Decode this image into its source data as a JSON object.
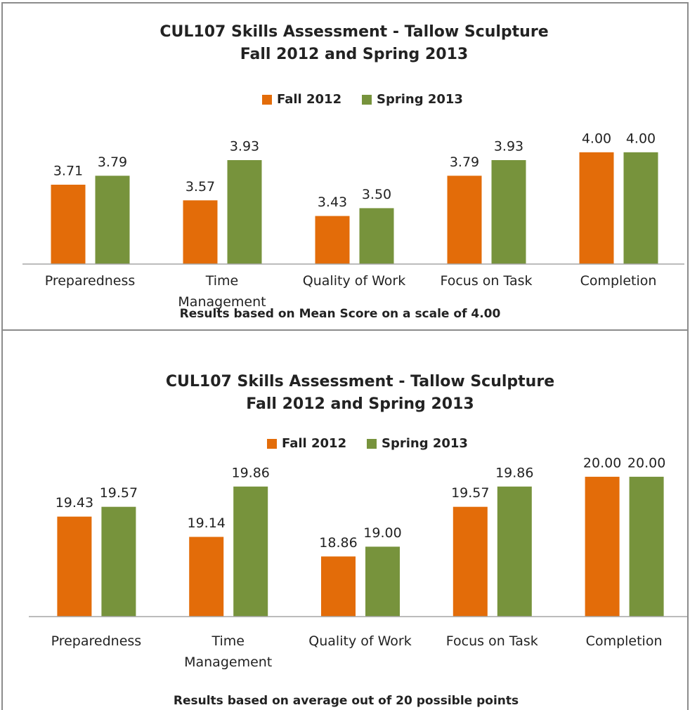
{
  "chart_data": [
    {
      "type": "bar",
      "title": "CUL107 Skills Assessment - Tallow Sculpture",
      "subtitle": "Fall 2012 and Spring 2013",
      "categories": [
        "Preparedness",
        "Time\nManagement",
        "Quality of Work",
        "Focus on Task",
        "Completion"
      ],
      "series": [
        {
          "name": "Fall 2012",
          "color": "#e36c09",
          "values": [
            3.71,
            3.57,
            3.43,
            3.79,
            4.0
          ],
          "value_labels": [
            "3.71",
            "3.57",
            "3.43",
            "3.79",
            "4.00"
          ]
        },
        {
          "name": "Spring 2013",
          "color": "#77933c",
          "values": [
            3.79,
            3.93,
            3.5,
            3.93,
            4.0
          ],
          "value_labels": [
            "3.79",
            "3.93",
            "3.50",
            "3.93",
            "4.00"
          ]
        }
      ],
      "ylim": [
        3,
        4.2
      ],
      "legend": "top",
      "note": "Results based on Mean Score on a scale of 4.00"
    },
    {
      "type": "bar",
      "title": "CUL107 Skills Assessment - Tallow Sculpture",
      "subtitle": "Fall 2012 and Spring 2013",
      "categories": [
        "Preparedness",
        "Time\nManagement",
        "Quality of Work",
        "Focus on Task",
        "Completion"
      ],
      "series": [
        {
          "name": "Fall 2012",
          "color": "#e36c09",
          "values": [
            19.43,
            19.14,
            18.86,
            19.57,
            20.0
          ],
          "value_labels": [
            "19.43",
            "19.14",
            "18.86",
            "19.57",
            "20.00"
          ]
        },
        {
          "name": "Spring 2013",
          "color": "#77933c",
          "values": [
            19.57,
            19.86,
            19.0,
            19.86,
            20.0
          ],
          "value_labels": [
            "19.57",
            "19.86",
            "19.00",
            "19.86",
            "20.00"
          ]
        }
      ],
      "ylim": [
        18,
        20.3
      ],
      "legend": "top",
      "note": "Results based on average out of 20 possible points"
    }
  ]
}
